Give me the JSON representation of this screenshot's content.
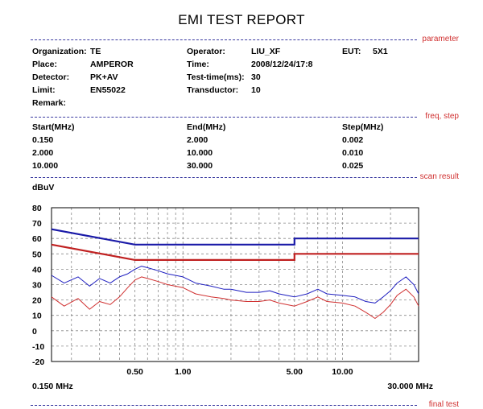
{
  "report": {
    "title": "EMI TEST REPORT"
  },
  "sections": {
    "parameter": "parameter",
    "freq": "freq, step",
    "scan": "scan result",
    "final": "final test"
  },
  "params": {
    "organization_label": "Organization:",
    "organization": "TE",
    "place_label": "Place:",
    "place": "AMPEROR",
    "detector_label": "Detector:",
    "detector": "PK+AV",
    "limit_label": "Limit:",
    "limit": "EN55022",
    "remark_label": "Remark:",
    "operator_label": "Operator:",
    "operator": "LIU_XF",
    "time_label": "Time:",
    "time": "2008/12/24/17:8",
    "testtime_label": "Test-time(ms):",
    "testtime": "30",
    "transductor_label": "Transductor:",
    "transductor": "10",
    "eut_label": "EUT:",
    "eut": "5X1"
  },
  "freq_table": {
    "headers": [
      "Start(MHz)",
      "End(MHz)",
      "Step(MHz)"
    ],
    "rows": [
      [
        "0.150",
        "2.000",
        "0.002"
      ],
      [
        "2.000",
        "10.000",
        "0.010"
      ],
      [
        "10.000",
        "30.000",
        "0.025"
      ]
    ]
  },
  "chart_data": {
    "type": "line",
    "ylabel": "dBuV",
    "xscale": "log",
    "xlim": [
      0.15,
      30
    ],
    "ylim": [
      -20,
      80
    ],
    "yticks": [
      -20,
      -10,
      0,
      10,
      20,
      30,
      40,
      50,
      60,
      70,
      80
    ],
    "xtick_labels": [
      {
        "value": 0.15,
        "label": "0.150 MHz"
      },
      {
        "value": 0.5,
        "label": "0.50"
      },
      {
        "value": 1.0,
        "label": "1.00"
      },
      {
        "value": 5.0,
        "label": "5.00"
      },
      {
        "value": 10.0,
        "label": "10.00"
      },
      {
        "value": 30.0,
        "label": "30.000 MHz"
      }
    ],
    "grid": true,
    "colors": {
      "qp_limit": "#1a1aa8",
      "av_limit": "#c02020",
      "peak": "#1e1ec0",
      "average": "#d03030"
    },
    "limits": [
      {
        "role": "quasi-peak limit",
        "points": [
          [
            0.15,
            66
          ],
          [
            0.5,
            56
          ],
          [
            5,
            56
          ],
          [
            5,
            60
          ],
          [
            30,
            60
          ]
        ]
      },
      {
        "role": "average limit",
        "points": [
          [
            0.15,
            56
          ],
          [
            0.5,
            46
          ],
          [
            5,
            46
          ],
          [
            5,
            50
          ],
          [
            30,
            50
          ]
        ]
      }
    ],
    "series": [
      {
        "role": "peak",
        "points": [
          [
            0.15,
            36
          ],
          [
            0.18,
            31
          ],
          [
            0.22,
            35
          ],
          [
            0.26,
            29
          ],
          [
            0.3,
            34
          ],
          [
            0.35,
            31
          ],
          [
            0.4,
            35
          ],
          [
            0.45,
            37
          ],
          [
            0.5,
            40
          ],
          [
            0.55,
            42
          ],
          [
            0.6,
            41
          ],
          [
            0.7,
            39
          ],
          [
            0.8,
            37
          ],
          [
            1.0,
            35
          ],
          [
            1.2,
            31
          ],
          [
            1.5,
            29
          ],
          [
            1.8,
            27
          ],
          [
            2.0,
            27
          ],
          [
            2.5,
            25
          ],
          [
            3.0,
            25
          ],
          [
            3.5,
            26
          ],
          [
            4.0,
            24
          ],
          [
            5.0,
            22
          ],
          [
            6.0,
            24
          ],
          [
            7.0,
            27
          ],
          [
            8.0,
            24
          ],
          [
            10.0,
            23
          ],
          [
            12.0,
            22
          ],
          [
            14.0,
            19
          ],
          [
            16.0,
            18
          ],
          [
            18.0,
            22
          ],
          [
            20.0,
            26
          ],
          [
            22.0,
            31
          ],
          [
            25.0,
            35
          ],
          [
            28.0,
            30
          ],
          [
            30.0,
            24
          ]
        ]
      },
      {
        "role": "average",
        "points": [
          [
            0.15,
            22
          ],
          [
            0.18,
            16
          ],
          [
            0.22,
            21
          ],
          [
            0.26,
            14
          ],
          [
            0.3,
            19
          ],
          [
            0.35,
            17
          ],
          [
            0.4,
            22
          ],
          [
            0.45,
            28
          ],
          [
            0.5,
            33
          ],
          [
            0.55,
            35
          ],
          [
            0.6,
            34
          ],
          [
            0.7,
            32
          ],
          [
            0.8,
            30
          ],
          [
            1.0,
            28
          ],
          [
            1.2,
            24
          ],
          [
            1.5,
            22
          ],
          [
            1.8,
            21
          ],
          [
            2.0,
            20
          ],
          [
            2.5,
            19
          ],
          [
            3.0,
            19
          ],
          [
            3.5,
            20
          ],
          [
            4.0,
            18
          ],
          [
            5.0,
            16
          ],
          [
            6.0,
            19
          ],
          [
            7.0,
            22
          ],
          [
            8.0,
            19
          ],
          [
            10.0,
            18
          ],
          [
            12.0,
            16
          ],
          [
            14.0,
            12
          ],
          [
            16.0,
            8
          ],
          [
            18.0,
            12
          ],
          [
            20.0,
            17
          ],
          [
            22.0,
            23
          ],
          [
            25.0,
            27
          ],
          [
            28.0,
            22
          ],
          [
            30.0,
            16
          ]
        ]
      }
    ]
  }
}
